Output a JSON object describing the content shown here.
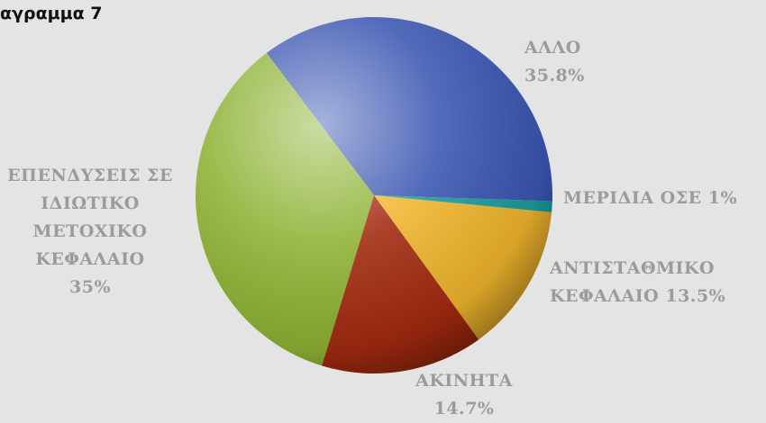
{
  "chart_data": {
    "type": "pie",
    "title": "αγραμμα 7",
    "categories": [
      "ΑΛΛΟ",
      "ΜΕΡΙΔΙΑ ΟΣΕ",
      "ΑΝΤΙΣΤΑΘΜΙΚΟ ΚΕΦΑΛΑΙΟ",
      "ΑΚΙΝΗΤΑ",
      "ΕΠΕΝΔΥΣΕΙΣ ΣΕ ΙΔΙΩΤΙΚΟ ΜΕΤΟΧΙΚΟ ΚΕΦΑΛΑΙΟ"
    ],
    "values": [
      35.8,
      1,
      13.5,
      14.7,
      35
    ],
    "value_labels": [
      "35.8%",
      "1%",
      "13.5%",
      "14.7%",
      "35%"
    ],
    "colors": [
      "#3b56b2",
      "#1d9c9c",
      "#f0b52c",
      "#a32a10",
      "#8db233"
    ]
  }
}
